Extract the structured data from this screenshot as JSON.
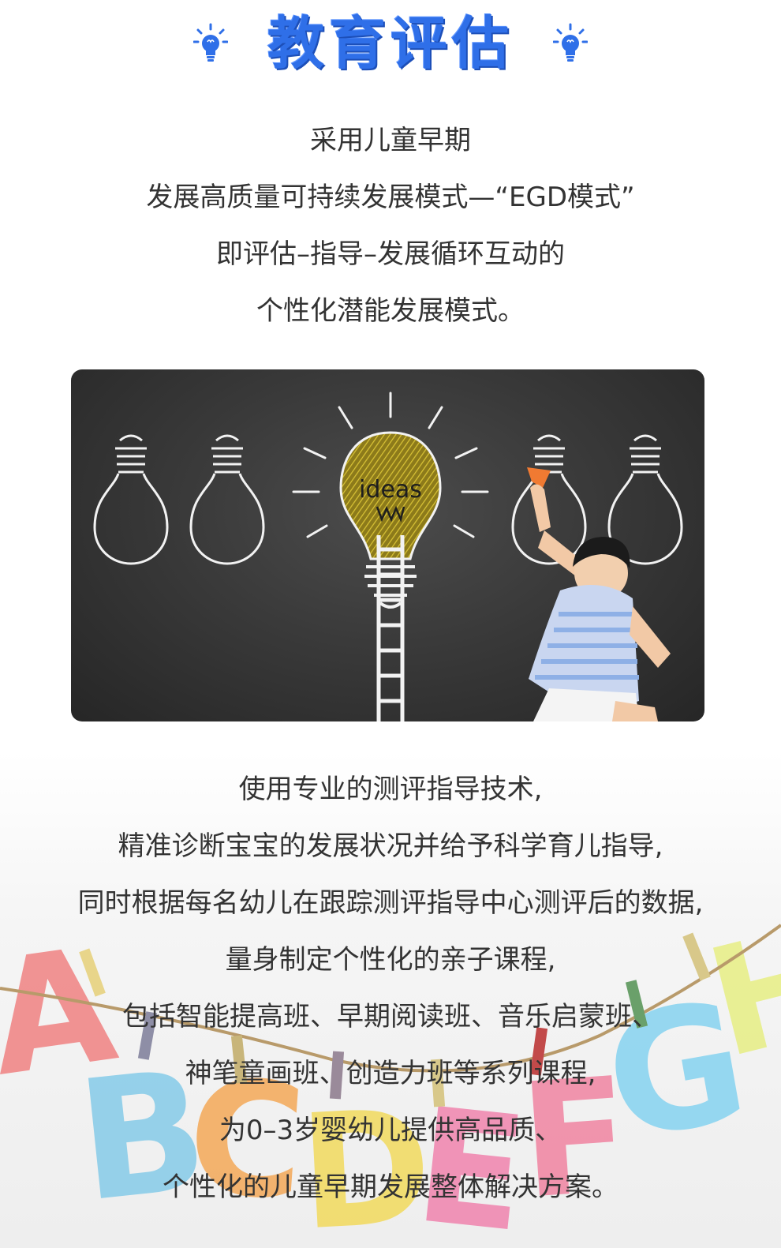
{
  "header": {
    "title": "教育评估",
    "left_icon": "lightbulb-icon",
    "right_icon": "lightbulb-icon",
    "accent_color": "#2f6fe8"
  },
  "intro": {
    "lines": [
      "采用儿童早期",
      "发展高质量可持续发展模式—“EGD模式”",
      "即评估–指导–发展循环互动的",
      "个性化潜能发展模式。"
    ]
  },
  "illustration": {
    "word": "ideas"
  },
  "outro": {
    "lines": [
      "使用专业的测评指导技术,",
      "精准诊断宝宝的发展状况并给予科学育儿指导,",
      "同时根据每名幼儿在跟踪测评指导中心测评后的数据,",
      "量身制定个性化的亲子课程,",
      "包括智能提高班、早期阅读班、音乐启蒙班、",
      "神笔童画班、创造力班等系列课程,",
      "为0–3岁婴幼儿提供高品质、",
      "个性化的儿童早期发展整体解决方案。"
    ]
  }
}
